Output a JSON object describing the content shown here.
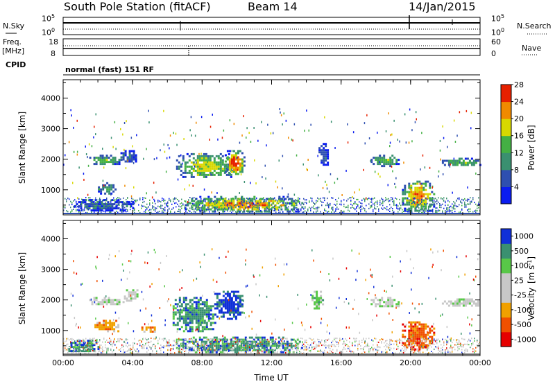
{
  "header": {
    "station": "South Pole Station (fitACF)",
    "beam": "Beam 14",
    "date": "14/Jan/2015"
  },
  "panels": {
    "nsky": {
      "label": "N.Sky",
      "tick_top": "10^5",
      "tick_bottom": "10^0"
    },
    "nsearch": {
      "label": "N.Search",
      "tick_top": "10^5",
      "tick_bottom": "10^0"
    },
    "freq": {
      "label_line1": "Freq.",
      "label_line2": "[MHz]",
      "tick_top": "18",
      "tick_bottom": "8"
    },
    "nave": {
      "label": "Nave",
      "tick_top": "60",
      "tick_bottom": "0"
    },
    "cpid": {
      "label": "CPID",
      "mode": "normal (fast) 151 RF"
    }
  },
  "chart_data": [
    {
      "type": "heatmap",
      "variable": "power",
      "ylabel": "Slant Range [km]",
      "xlabel": "",
      "xlim": [
        0,
        24
      ],
      "ylim": [
        180,
        4600
      ],
      "x_ticks": [
        "00:00",
        "04:00",
        "08:00",
        "12:00",
        "16:00",
        "20:00",
        "00:00"
      ],
      "y_ticks": [
        1000,
        2000,
        3000,
        4000
      ],
      "colorbar": {
        "label": "Power [dB]",
        "ticks": [
          "4",
          "8",
          "12",
          "16",
          "20",
          "24",
          "28"
        ],
        "colors": [
          "#0a1cf0",
          "#2e4fb0",
          "#3a9070",
          "#44b044",
          "#d8d800",
          "#f08a00",
          "#e62000"
        ]
      },
      "regions": [
        {
          "t": [
            1.5,
            3.3
          ],
          "r": [
            1850,
            2150
          ],
          "level": 3
        },
        {
          "t": [
            2.0,
            3.0
          ],
          "r": [
            900,
            1250
          ],
          "level": 2
        },
        {
          "t": [
            3.3,
            4.2
          ],
          "r": [
            1900,
            2300
          ],
          "level": 1
        },
        {
          "t": [
            6.5,
            9.8
          ],
          "r": [
            1400,
            2200
          ],
          "level": 4
        },
        {
          "t": [
            9.3,
            10.4
          ],
          "r": [
            1500,
            2300
          ],
          "level": 6
        },
        {
          "t": [
            0.5,
            4.0
          ],
          "r": [
            350,
            700
          ],
          "level": 1
        },
        {
          "t": [
            7.0,
            13.8
          ],
          "r": [
            300,
            800
          ],
          "level": 5
        },
        {
          "t": [
            14.7,
            15.2
          ],
          "r": [
            1800,
            2600
          ],
          "level": 1
        },
        {
          "t": [
            17.7,
            19.3
          ],
          "r": [
            1800,
            2150
          ],
          "level": 3
        },
        {
          "t": [
            19.5,
            21.3
          ],
          "r": [
            300,
            1300
          ],
          "level": 5
        },
        {
          "t": [
            21.8,
            24.0
          ],
          "r": [
            1800,
            2050
          ],
          "level": 3
        }
      ]
    },
    {
      "type": "heatmap",
      "variable": "velocity",
      "ylabel": "Slant Range [km]",
      "xlabel": "Time UT",
      "xlim": [
        0,
        24
      ],
      "ylim": [
        180,
        4600
      ],
      "x_ticks": [
        "00:00",
        "04:00",
        "08:00",
        "12:00",
        "16:00",
        "20:00",
        "00:00"
      ],
      "y_ticks": [
        1000,
        2000,
        3000,
        4000
      ],
      "colorbar": {
        "label_main": "Velocity",
        "label_unit": "[m s",
        "label_exp": "-1",
        "label_close": "]",
        "ticks": [
          "1000",
          "500",
          "100",
          "25",
          "-25",
          "-100",
          "-500",
          "-1000"
        ],
        "colors": [
          "#1030d8",
          "#3a9070",
          "#58c848",
          "#c8c8c8",
          "#c8c8c8",
          "#f0a000",
          "#f05000",
          "#e60000"
        ]
      },
      "regions": [
        {
          "t": [
            1.5,
            3.5
          ],
          "r": [
            1850,
            2100
          ],
          "level": 3
        },
        {
          "t": [
            1.8,
            3.2
          ],
          "r": [
            950,
            1350
          ],
          "level": 5
        },
        {
          "t": [
            3.5,
            4.3
          ],
          "r": [
            1950,
            2350
          ],
          "level": 3
        },
        {
          "t": [
            4.5,
            5.3
          ],
          "r": [
            950,
            1200
          ],
          "level": 5
        },
        {
          "t": [
            6.3,
            8.7
          ],
          "r": [
            1000,
            2100
          ],
          "level": 1
        },
        {
          "t": [
            8.7,
            10.3
          ],
          "r": [
            1400,
            2300
          ],
          "level": 0
        },
        {
          "t": [
            6.5,
            13.8
          ],
          "r": [
            300,
            800
          ],
          "level": 1
        },
        {
          "t": [
            14.3,
            14.9
          ],
          "r": [
            1700,
            2300
          ],
          "level": 2
        },
        {
          "t": [
            17.7,
            19.3
          ],
          "r": [
            1800,
            2100
          ],
          "level": 3
        },
        {
          "t": [
            19.5,
            21.3
          ],
          "r": [
            400,
            1300
          ],
          "level": 6
        },
        {
          "t": [
            21.8,
            24.0
          ],
          "r": [
            1800,
            2050
          ],
          "level": 3
        },
        {
          "t": [
            0.3,
            2.0
          ],
          "r": [
            300,
            700
          ],
          "level": 1
        }
      ]
    }
  ]
}
